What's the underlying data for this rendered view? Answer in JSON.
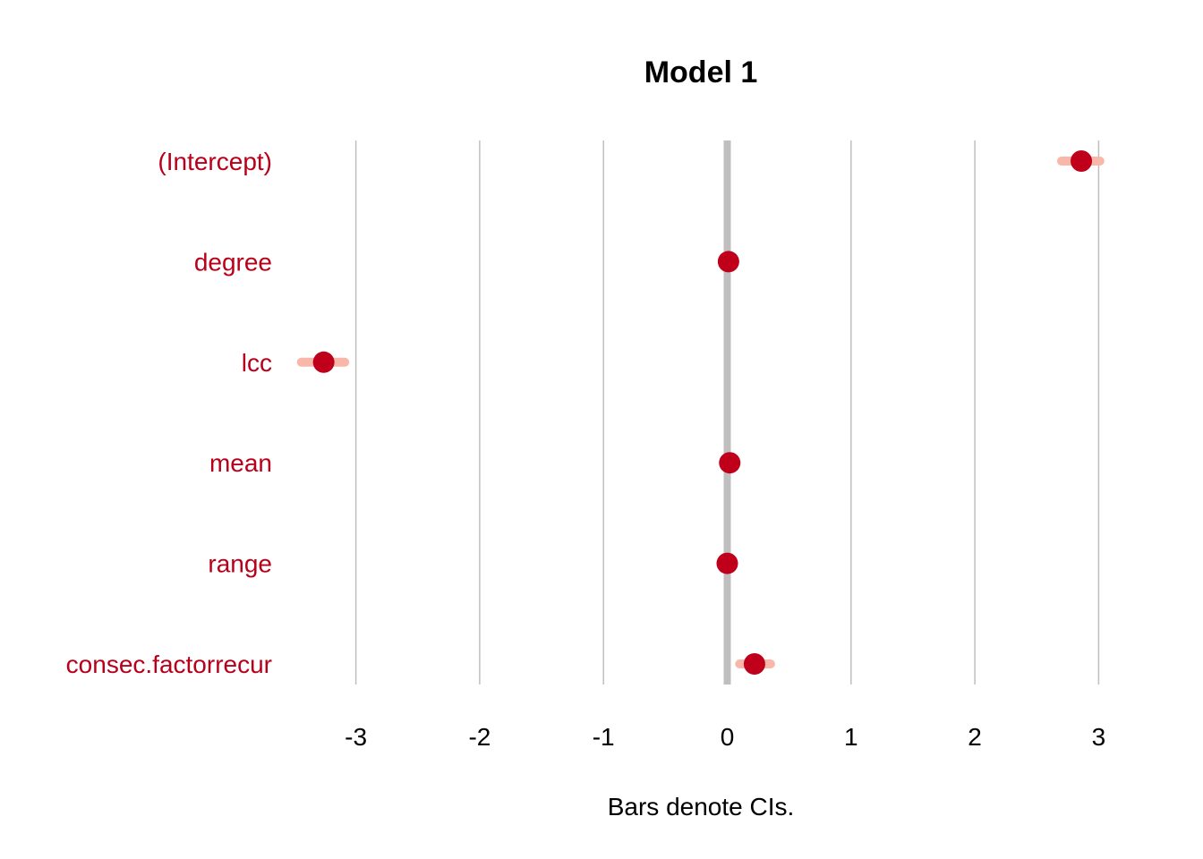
{
  "chart_data": {
    "type": "scatter",
    "title": "Model 1",
    "xlabel": "Bars denote CIs.",
    "ylabel": "",
    "xlim": [
      -3.6,
      3.3
    ],
    "xticks": [
      -3,
      -2,
      -1,
      0,
      1,
      2,
      3
    ],
    "xtick_labels": [
      "-3",
      "-2",
      "-1",
      "0",
      "1",
      "2",
      "3"
    ],
    "grid": "vertical",
    "legend": "none",
    "categories": [
      "(Intercept)",
      "degree",
      "lcc",
      "mean",
      "range",
      "consec.factorrecur"
    ],
    "series": [
      {
        "estimates": [
          2.86,
          0.01,
          -3.26,
          0.02,
          0.0,
          0.22
        ],
        "ci_low": [
          2.7,
          0.0,
          -3.44,
          0.01,
          -0.01,
          0.1
        ],
        "ci_high": [
          3.01,
          0.02,
          -3.09,
          0.03,
          0.01,
          0.35
        ]
      }
    ],
    "colors": {
      "point": "#c0001a",
      "ci": "#f8b7a8",
      "label": "#b8001a",
      "grid": "#bfbfbf",
      "zero_line": "#bfbfbf"
    }
  }
}
